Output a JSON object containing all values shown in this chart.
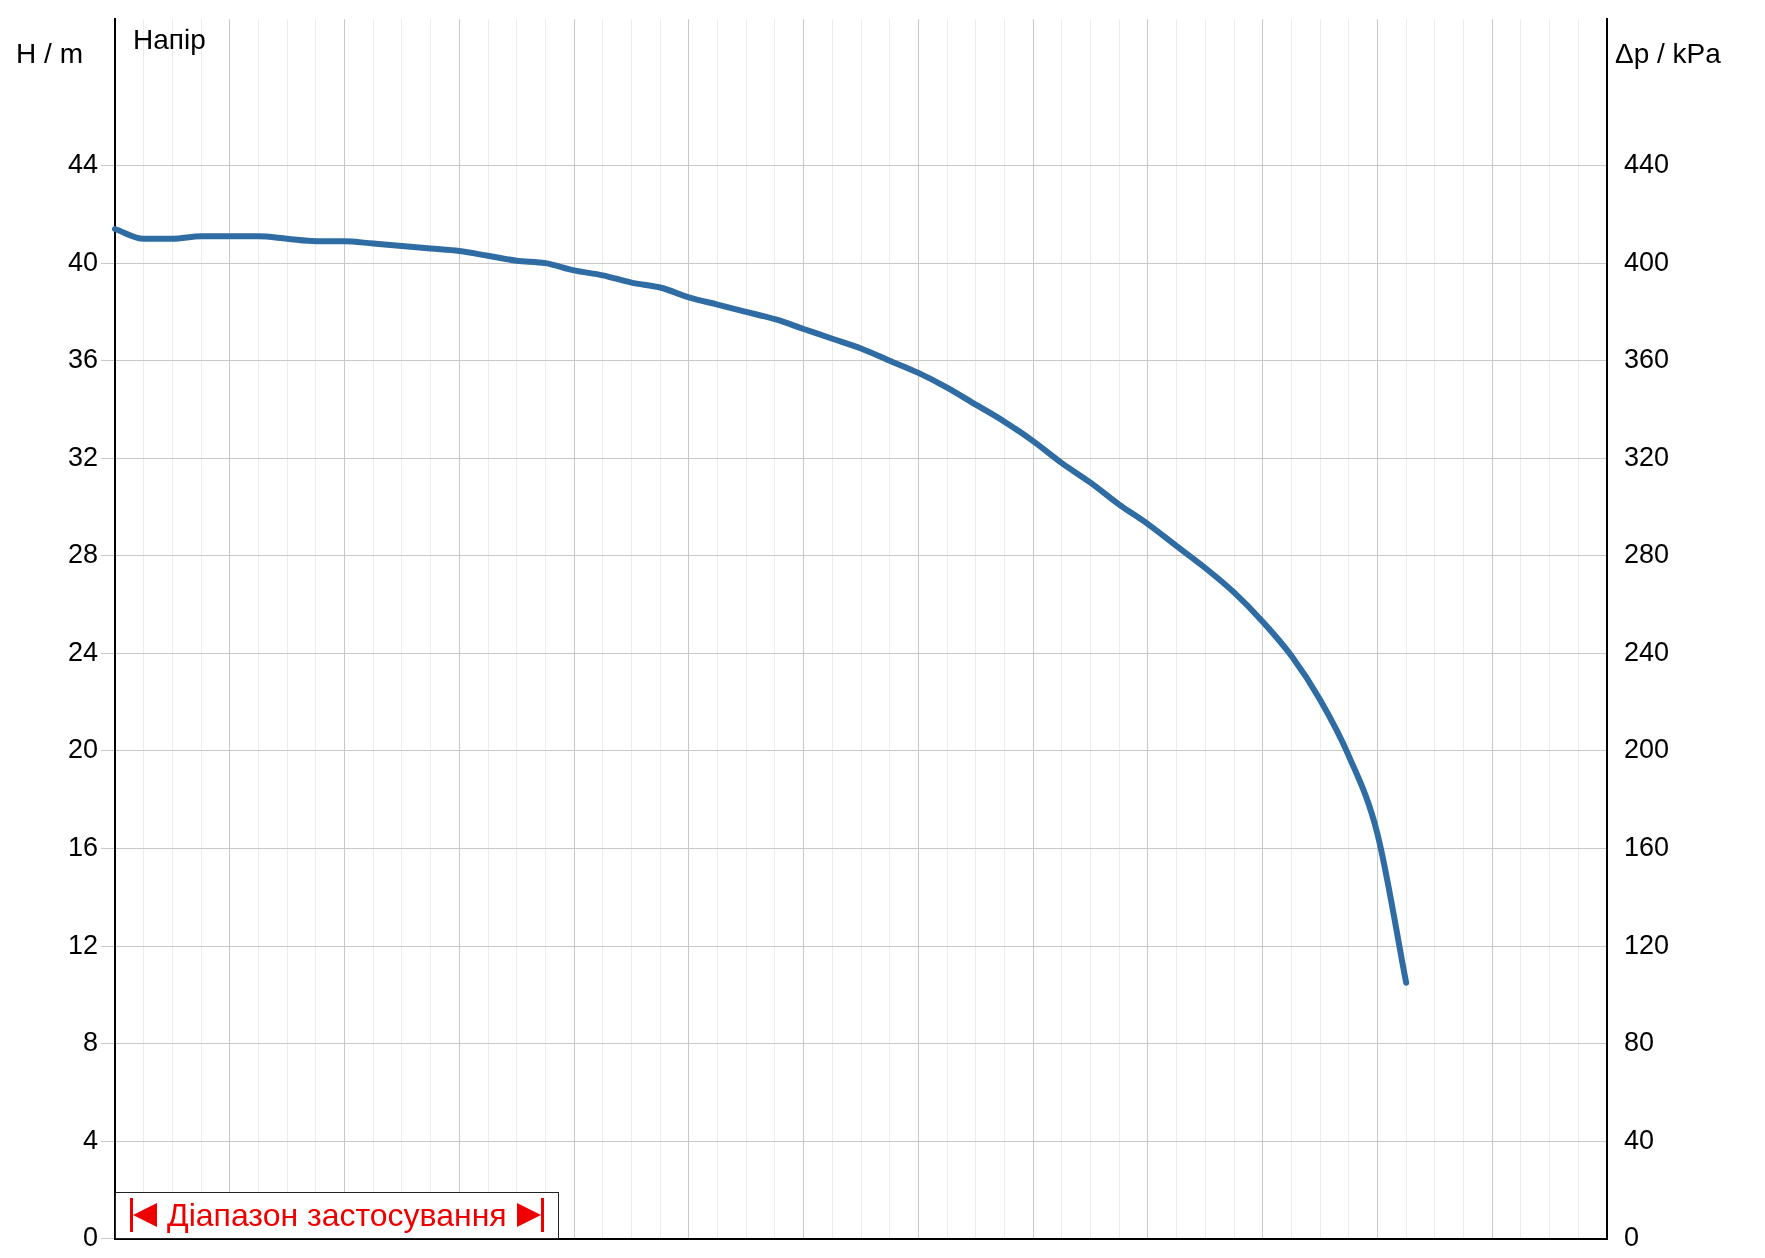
{
  "chart_data": {
    "type": "line",
    "title": "Напір",
    "ylabel": "H / m",
    "y2label": "Δp / kPa",
    "categories": [
      null,
      null,
      null,
      null,
      null,
      null,
      null,
      null,
      null,
      null,
      null,
      null,
      null,
      null,
      null,
      null,
      null,
      null,
      null,
      null,
      null,
      null,
      null,
      null,
      null,
      null,
      null,
      null,
      null,
      null,
      null,
      null,
      null,
      null,
      null,
      null,
      null,
      null,
      null,
      null,
      null,
      null,
      null,
      null,
      null,
      null,
      null,
      null,
      null,
      null,
      null,
      null,
      null
    ],
    "series": [
      {
        "color": "#2f6ca3",
        "values": [
          41.4,
          41.0,
          41.0,
          41.1,
          41.1,
          41.1,
          41.0,
          40.9,
          40.9,
          40.8,
          40.7,
          40.6,
          40.5,
          40.3,
          40.1,
          40.0,
          39.7,
          39.5,
          39.2,
          39.0,
          38.6,
          38.3,
          38.0,
          37.7,
          37.3,
          36.9,
          36.5,
          36.0,
          35.5,
          34.9,
          34.2,
          33.5,
          32.7,
          31.8,
          31.0,
          30.1,
          29.3,
          28.4,
          27.5,
          26.5,
          25.3,
          23.9,
          22.1,
          19.8,
          16.6,
          10.5,
          null,
          null,
          null,
          null,
          null,
          null,
          null
        ]
      }
    ],
    "ylim": [
      0,
      50
    ],
    "yticks": [
      0,
      4,
      8,
      12,
      16,
      20,
      24,
      28,
      32,
      36,
      40,
      44
    ],
    "y2lim": [
      0,
      500
    ],
    "y2ticks": [
      0,
      40,
      80,
      120,
      160,
      200,
      240,
      280,
      320,
      360,
      400,
      440
    ],
    "grid": true,
    "marker": "none",
    "line_style": "solid",
    "annotations": [
      "Діапазон застосування"
    ]
  }
}
